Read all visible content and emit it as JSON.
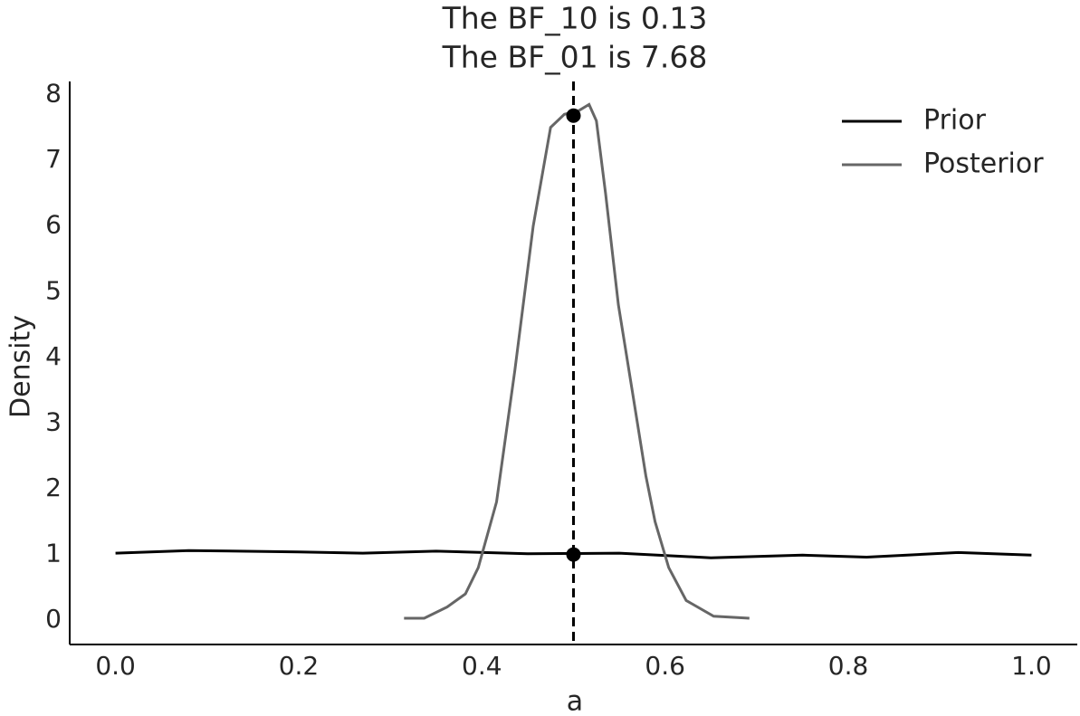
{
  "chart_data": {
    "type": "line",
    "title": [
      "The BF_10 is 0.13",
      "The BF_01 is 7.68"
    ],
    "xlabel": "a",
    "ylabel": "Density",
    "xlim": [
      -0.05,
      1.05
    ],
    "ylim": [
      -0.37,
      8.2
    ],
    "xticks": [
      {
        "value": 0,
        "label": "0.0"
      },
      0.2,
      0.4,
      0.6,
      0.8,
      {
        "value": 1,
        "label": "1.0"
      }
    ],
    "yticks": [
      0,
      1,
      2,
      3,
      4,
      5,
      6,
      7,
      8
    ],
    "legend": "upper right",
    "series": [
      {
        "name": "Prior",
        "color": "#000000",
        "x": [
          0,
          0.08,
          0.2,
          0.27,
          0.35,
          0.45,
          0.55,
          0.65,
          0.75,
          0.82,
          0.92,
          1.0
        ],
        "values": [
          1.02,
          1.06,
          1.04,
          1.02,
          1.05,
          1.01,
          1.02,
          0.95,
          0.99,
          0.96,
          1.03,
          0.99
        ]
      },
      {
        "name": "Posterior",
        "color": "#666666",
        "x": [
          0.315,
          0.337,
          0.362,
          0.382,
          0.396,
          0.416,
          0.436,
          0.456,
          0.475,
          0.49,
          0.505,
          0.517,
          0.525,
          0.535,
          0.549,
          0.564,
          0.579,
          0.589,
          0.604,
          0.623,
          0.653,
          0.692
        ],
        "values": [
          0.03,
          0.03,
          0.2,
          0.4,
          0.8,
          1.8,
          3.8,
          6.0,
          7.5,
          7.7,
          7.75,
          7.85,
          7.6,
          6.5,
          4.8,
          3.5,
          2.2,
          1.5,
          0.8,
          0.3,
          0.06,
          0.03
        ]
      }
    ],
    "ref_x": 0.5,
    "points": {
      "x": [
        0.5,
        0.5
      ],
      "y": [
        7.68,
        1.0
      ],
      "color": "#000000"
    }
  }
}
